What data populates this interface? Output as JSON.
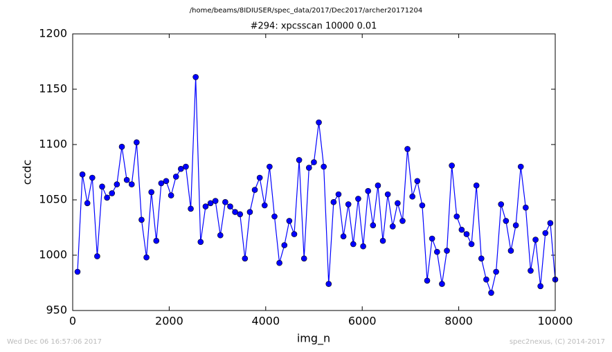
{
  "chart_data": {
    "type": "line",
    "title": "/home/beams/8IDIUSER/spec_data/2017/Dec2017/archer20171204",
    "subtitle": "#294: xpcsscan 10000 0.01",
    "x_label": "img_n",
    "y_label": "ccdc",
    "footer_left": "Wed Dec 06 16:57:06 2017",
    "footer_right": "spec2nexus, (C) 2014-2017",
    "x": [
      100,
      202,
      304,
      406,
      508,
      610,
      712,
      814,
      916,
      1019,
      1121,
      1223,
      1325,
      1427,
      1529,
      1631,
      1733,
      1835,
      1937,
      2039,
      2141,
      2243,
      2345,
      2447,
      2549,
      2651,
      2754,
      2856,
      2958,
      3060,
      3162,
      3264,
      3366,
      3468,
      3570,
      3672,
      3774,
      3876,
      3978,
      4080,
      4182,
      4284,
      4387,
      4489,
      4591,
      4693,
      4795,
      4897,
      4999,
      5101,
      5203,
      5305,
      5407,
      5509,
      5611,
      5713,
      5815,
      5917,
      6020,
      6122,
      6224,
      6326,
      6428,
      6530,
      6632,
      6734,
      6836,
      6938,
      7040,
      7142,
      7244,
      7346,
      7448,
      7551,
      7653,
      7755,
      7857,
      7959,
      8061,
      8163,
      8265,
      8367,
      8469,
      8571,
      8673,
      8775,
      8877,
      8979,
      9081,
      9184,
      9286,
      9388,
      9490,
      9592,
      9694,
      9796,
      9898,
      10000
    ],
    "series": [
      {
        "name": "ccdc",
        "color": "#0000ff",
        "values": [
          985,
          1073,
          1047,
          1070,
          999,
          1062,
          1052,
          1056,
          1064,
          1098,
          1068,
          1064,
          1102,
          1032,
          998,
          1057,
          1013,
          1065,
          1067,
          1054,
          1071,
          1078,
          1080,
          1042,
          1161,
          1012,
          1044,
          1047,
          1049,
          1018,
          1048,
          1044,
          1039,
          1037,
          997,
          1039,
          1059,
          1070,
          1045,
          1080,
          1035,
          993,
          1009,
          1031,
          1019,
          1086,
          997,
          1079,
          1084,
          1120,
          1080,
          974,
          1048,
          1055,
          1017,
          1046,
          1010,
          1051,
          1008,
          1058,
          1027,
          1063,
          1013,
          1055,
          1026,
          1047,
          1031,
          1096,
          1053,
          1067,
          1045,
          977,
          1015,
          1003,
          974,
          1004,
          1081,
          1035,
          1023,
          1019,
          1010,
          1063,
          997,
          978,
          966,
          985,
          1046,
          1031,
          1004,
          1027,
          1080,
          1043,
          986,
          1014,
          972,
          1020,
          1029,
          978
        ]
      }
    ],
    "xlim": [
      0,
      10000
    ],
    "xticks": [
      0,
      2000,
      4000,
      6000,
      8000,
      10000
    ],
    "ylim": [
      950,
      1200
    ],
    "yticks": [
      950,
      1000,
      1050,
      1100,
      1150,
      1200
    ],
    "grid": false
  }
}
